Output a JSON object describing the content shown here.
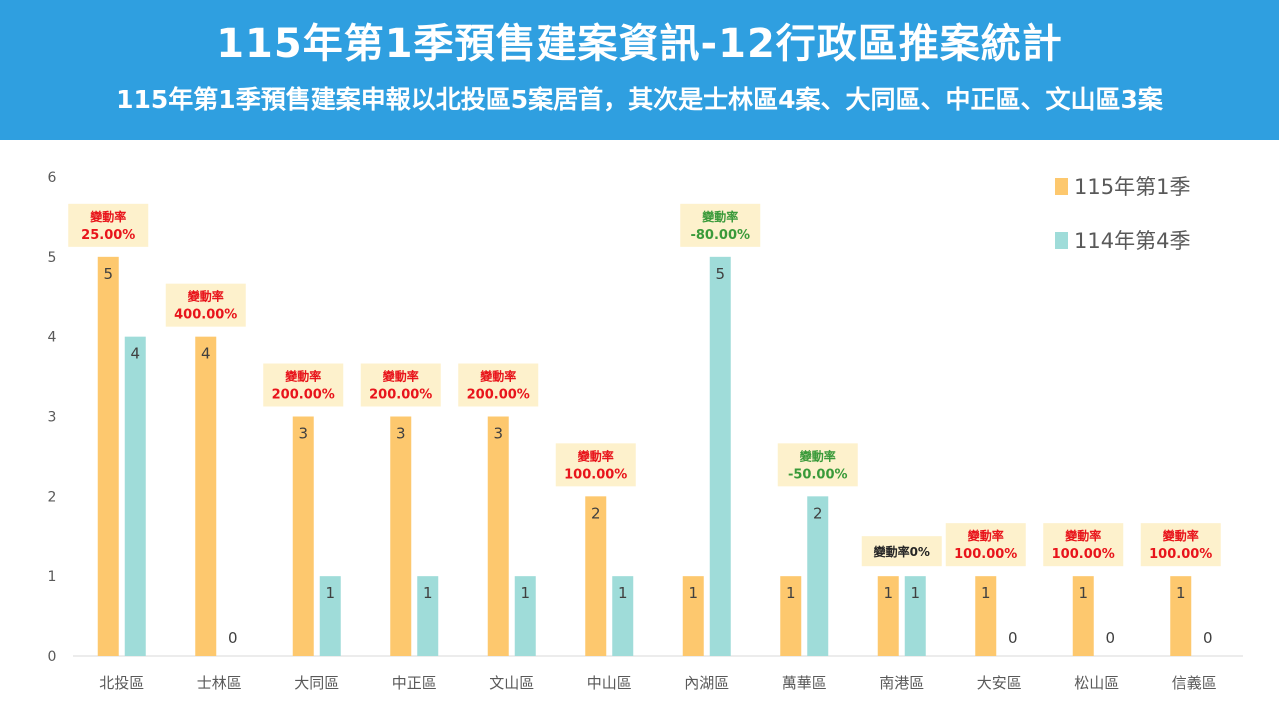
{
  "header": {
    "title": "115年第1季預售建案資訊-12行政區推案統計",
    "subtitle": "115年第1季預售建案申報以北投區5案居首，其次是士林區4案、大同區、中正區、文山區3案"
  },
  "chart_data": {
    "type": "bar",
    "categories": [
      "北投區",
      "士林區",
      "大同區",
      "中正區",
      "文山區",
      "中山區",
      "內湖區",
      "萬華區",
      "南港區",
      "大安區",
      "松山區",
      "信義區"
    ],
    "series": [
      {
        "name": "115年第1季",
        "color": "#fdc86e",
        "values": [
          5,
          4,
          3,
          3,
          3,
          2,
          1,
          1,
          1,
          1,
          1,
          1
        ]
      },
      {
        "name": "114年第4季",
        "color": "#9fdcd9",
        "values": [
          4,
          0,
          1,
          1,
          1,
          1,
          5,
          2,
          1,
          0,
          0,
          0
        ]
      }
    ],
    "yticks": [
      "0",
      "1",
      "2",
      "3",
      "4",
      "5",
      "6"
    ],
    "ylim": [
      0,
      6
    ],
    "legend_position": "top-right",
    "grid": false,
    "annotations": [
      {
        "lines": [
          "變動率",
          "25.00%"
        ],
        "color": "#e8141b"
      },
      {
        "lines": [
          "變動率",
          "400.00%"
        ],
        "color": "#e8141b"
      },
      {
        "lines": [
          "變動率",
          "200.00%"
        ],
        "color": "#e8141b"
      },
      {
        "lines": [
          "變動率",
          "200.00%"
        ],
        "color": "#e8141b"
      },
      {
        "lines": [
          "變動率",
          "200.00%"
        ],
        "color": "#e8141b"
      },
      {
        "lines": [
          "變動率",
          "100.00%"
        ],
        "color": "#e8141b"
      },
      {
        "lines": [
          "變動率",
          "-80.00%"
        ],
        "color": "#3a9a3a"
      },
      {
        "lines": [
          "變動率",
          "-50.00%"
        ],
        "color": "#3a9a3a"
      },
      {
        "lines": [
          "變動率0%"
        ],
        "color": "#262626"
      },
      {
        "lines": [
          "變動率",
          "100.00%"
        ],
        "color": "#e8141b"
      },
      {
        "lines": [
          "變動率",
          "100.00%"
        ],
        "color": "#e8141b"
      },
      {
        "lines": [
          "變動率",
          "100.00%"
        ],
        "color": "#e8141b"
      }
    ],
    "annotation_bg": "#fdf1cc"
  }
}
